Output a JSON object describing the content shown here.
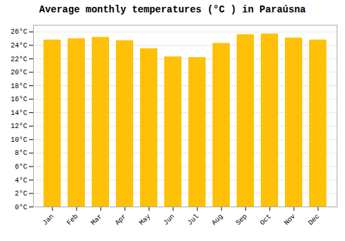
{
  "chart_data": {
    "type": "bar",
    "title": "Average monthly temperatures (°C ) in Paraúsna",
    "categories": [
      "Jan",
      "Feb",
      "Mar",
      "Apr",
      "May",
      "Jun",
      "Jul",
      "Aug",
      "Sep",
      "Oct",
      "Nov",
      "Dec"
    ],
    "values": [
      24.8,
      25.0,
      25.2,
      24.7,
      23.5,
      22.3,
      22.2,
      24.3,
      25.6,
      25.7,
      25.1,
      24.8
    ],
    "color": "#FFC107",
    "ylim": [
      0,
      27
    ],
    "yticks": [
      {
        "value": 0,
        "label": "0°C"
      },
      {
        "value": 2,
        "label": "2°C"
      },
      {
        "value": 4,
        "label": "4°C"
      },
      {
        "value": 6,
        "label": "6°C"
      },
      {
        "value": 8,
        "label": "8°C"
      },
      {
        "value": 10,
        "label": "10°C"
      },
      {
        "value": 12,
        "label": "12°C"
      },
      {
        "value": 14,
        "label": "14°C"
      },
      {
        "value": 16,
        "label": "16°C"
      },
      {
        "value": 18,
        "label": "18°C"
      },
      {
        "value": 20,
        "label": "20°C"
      },
      {
        "value": 22,
        "label": "22°C"
      },
      {
        "value": 24,
        "label": "24°C"
      },
      {
        "value": 26,
        "label": "26°C"
      }
    ],
    "grid": true
  }
}
